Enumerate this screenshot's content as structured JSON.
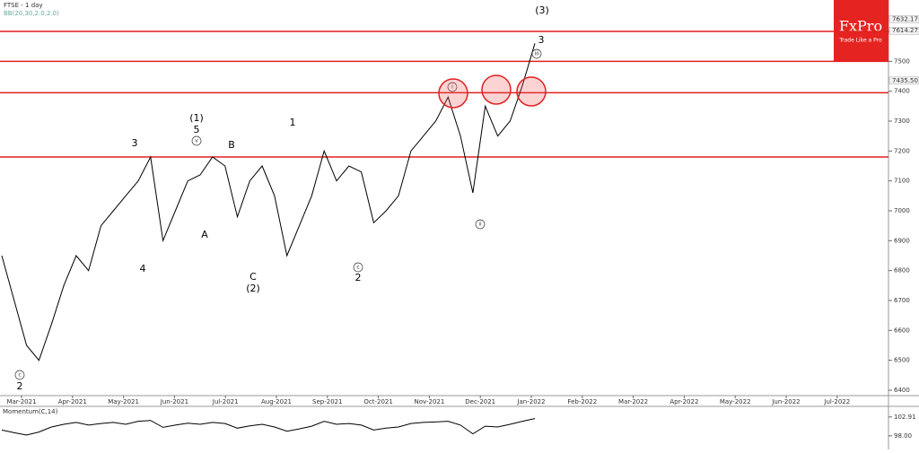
{
  "chart_data": [
    {
      "type": "line",
      "title": "FTSE - 1 day",
      "subtitle": "BB(20,30,2.0,2.0)",
      "color": "#000000",
      "values": [
        6850,
        6700,
        6550,
        6500,
        6620,
        6750,
        6850,
        6800,
        6950,
        7000,
        7050,
        7100,
        7180,
        6900,
        7000,
        7100,
        7120,
        7180,
        7150,
        6980,
        7100,
        7150,
        7050,
        6850,
        6950,
        7050,
        7200,
        7100,
        7150,
        7130,
        6960,
        7000,
        7050,
        7200,
        7250,
        7300,
        7380,
        7250,
        7060,
        7350,
        7250,
        7300,
        7420,
        7560
      ],
      "ylim": [
        6382,
        7705
      ],
      "yticks": [
        6400,
        6500,
        6600,
        6700,
        6800,
        6900,
        7000,
        7100,
        7200,
        7300,
        7400,
        7500,
        7600
      ],
      "month_labels": [
        "Mar-2021",
        "Apr-2021",
        "May-2021",
        "Jun-2021",
        "Jul-2021",
        "Aug-2021",
        "Sep-2021",
        "Oct-2021",
        "Nov-2021",
        "Dec-2021",
        "Jan-2022",
        "Feb-2022",
        "Mar-2022",
        "Apr-2022",
        "May-2022",
        "Jun-2022",
        "Jul-2022"
      ],
      "levels": [
        7600,
        7500,
        7395,
        7180
      ],
      "level_color": "#e02020",
      "price_badges": [
        {
          "value": 7632.17,
          "label": "7632.17"
        },
        {
          "value": 7614.27,
          "label": "7614.27"
        },
        {
          "value": 7435.5,
          "label": "7435.50"
        }
      ],
      "annotations": [
        "(3)",
        "3",
        "iii",
        "(1)",
        "5",
        "v",
        "3",
        "4",
        "B",
        "A",
        "C",
        "(2)",
        "1",
        "2",
        "c",
        "2",
        "c",
        "ii",
        "i"
      ],
      "logo": "FxPro",
      "logo_tagline": "Trade Like a Pro"
    },
    {
      "type": "line",
      "title": "Momentum(C,14)",
      "color": "#000000",
      "values": [
        99.5,
        98.8,
        98.2,
        99,
        100.3,
        101,
        101.5,
        100.8,
        101.2,
        101.5,
        101,
        101.8,
        102,
        100.2,
        100.8,
        101.3,
        101,
        101.5,
        101.2,
        100,
        100.6,
        101,
        100.3,
        99.2,
        99.8,
        100.5,
        101.8,
        101,
        101.2,
        100.8,
        99.5,
        100,
        100.3,
        101.2,
        101.5,
        101.6,
        101.8,
        100.8,
        98.5,
        100.5,
        100.3,
        101,
        101.8,
        102.5
      ],
      "ylim": [
        94.7,
        105.2
      ],
      "yticks": [
        {
          "value": 102.91,
          "label": "102.91"
        },
        {
          "value": 98.0,
          "label": "98.00"
        }
      ]
    }
  ]
}
